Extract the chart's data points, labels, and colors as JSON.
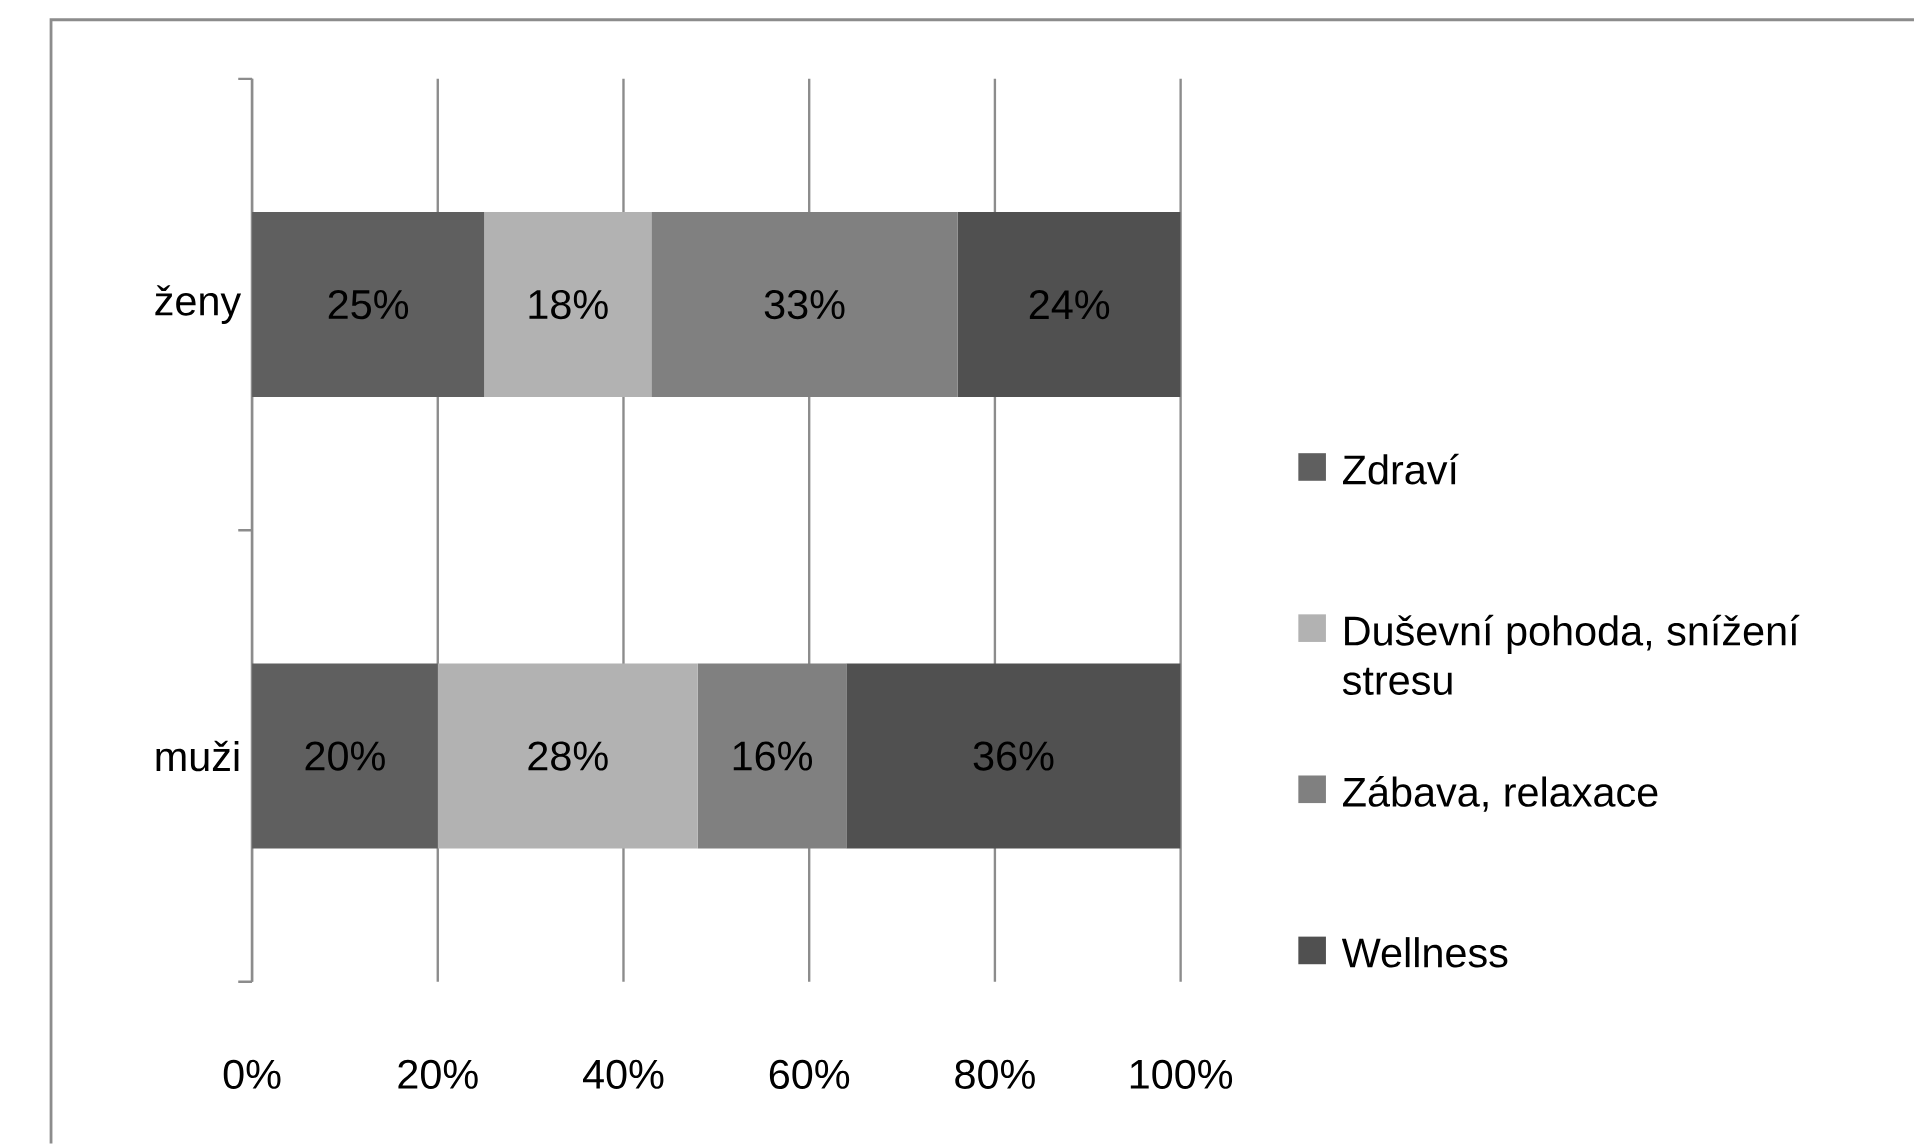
{
  "chart_data": {
    "type": "bar",
    "orientation": "horizontal",
    "stacked": true,
    "categories": [
      "ženy",
      "muži"
    ],
    "series": [
      {
        "name": "Zdraví",
        "color": "#5f5f5f",
        "values": [
          25,
          20
        ],
        "value_labels": [
          "25%",
          "20%"
        ]
      },
      {
        "name": "Duševní pohoda, snížení stresu",
        "color": "#b2b2b2",
        "values": [
          18,
          28
        ],
        "value_labels": [
          "18%",
          "28%"
        ]
      },
      {
        "name": "Zábava, relaxace",
        "color": "#808080",
        "values": [
          33,
          16
        ],
        "value_labels": [
          "33%",
          "16%"
        ]
      },
      {
        "name": "Wellness",
        "color": "#505050",
        "values": [
          24,
          36
        ],
        "value_labels": [
          "24%",
          "36%"
        ]
      }
    ],
    "xlim": [
      0,
      100
    ],
    "xticks": [
      {
        "value": 0,
        "label": "0%"
      },
      {
        "value": 20,
        "label": "20%"
      },
      {
        "value": 40,
        "label": "40%"
      },
      {
        "value": 60,
        "label": "60%"
      },
      {
        "value": 80,
        "label": "80%"
      },
      {
        "value": 100,
        "label": "100%"
      }
    ],
    "grid": "x",
    "legend": "right"
  }
}
